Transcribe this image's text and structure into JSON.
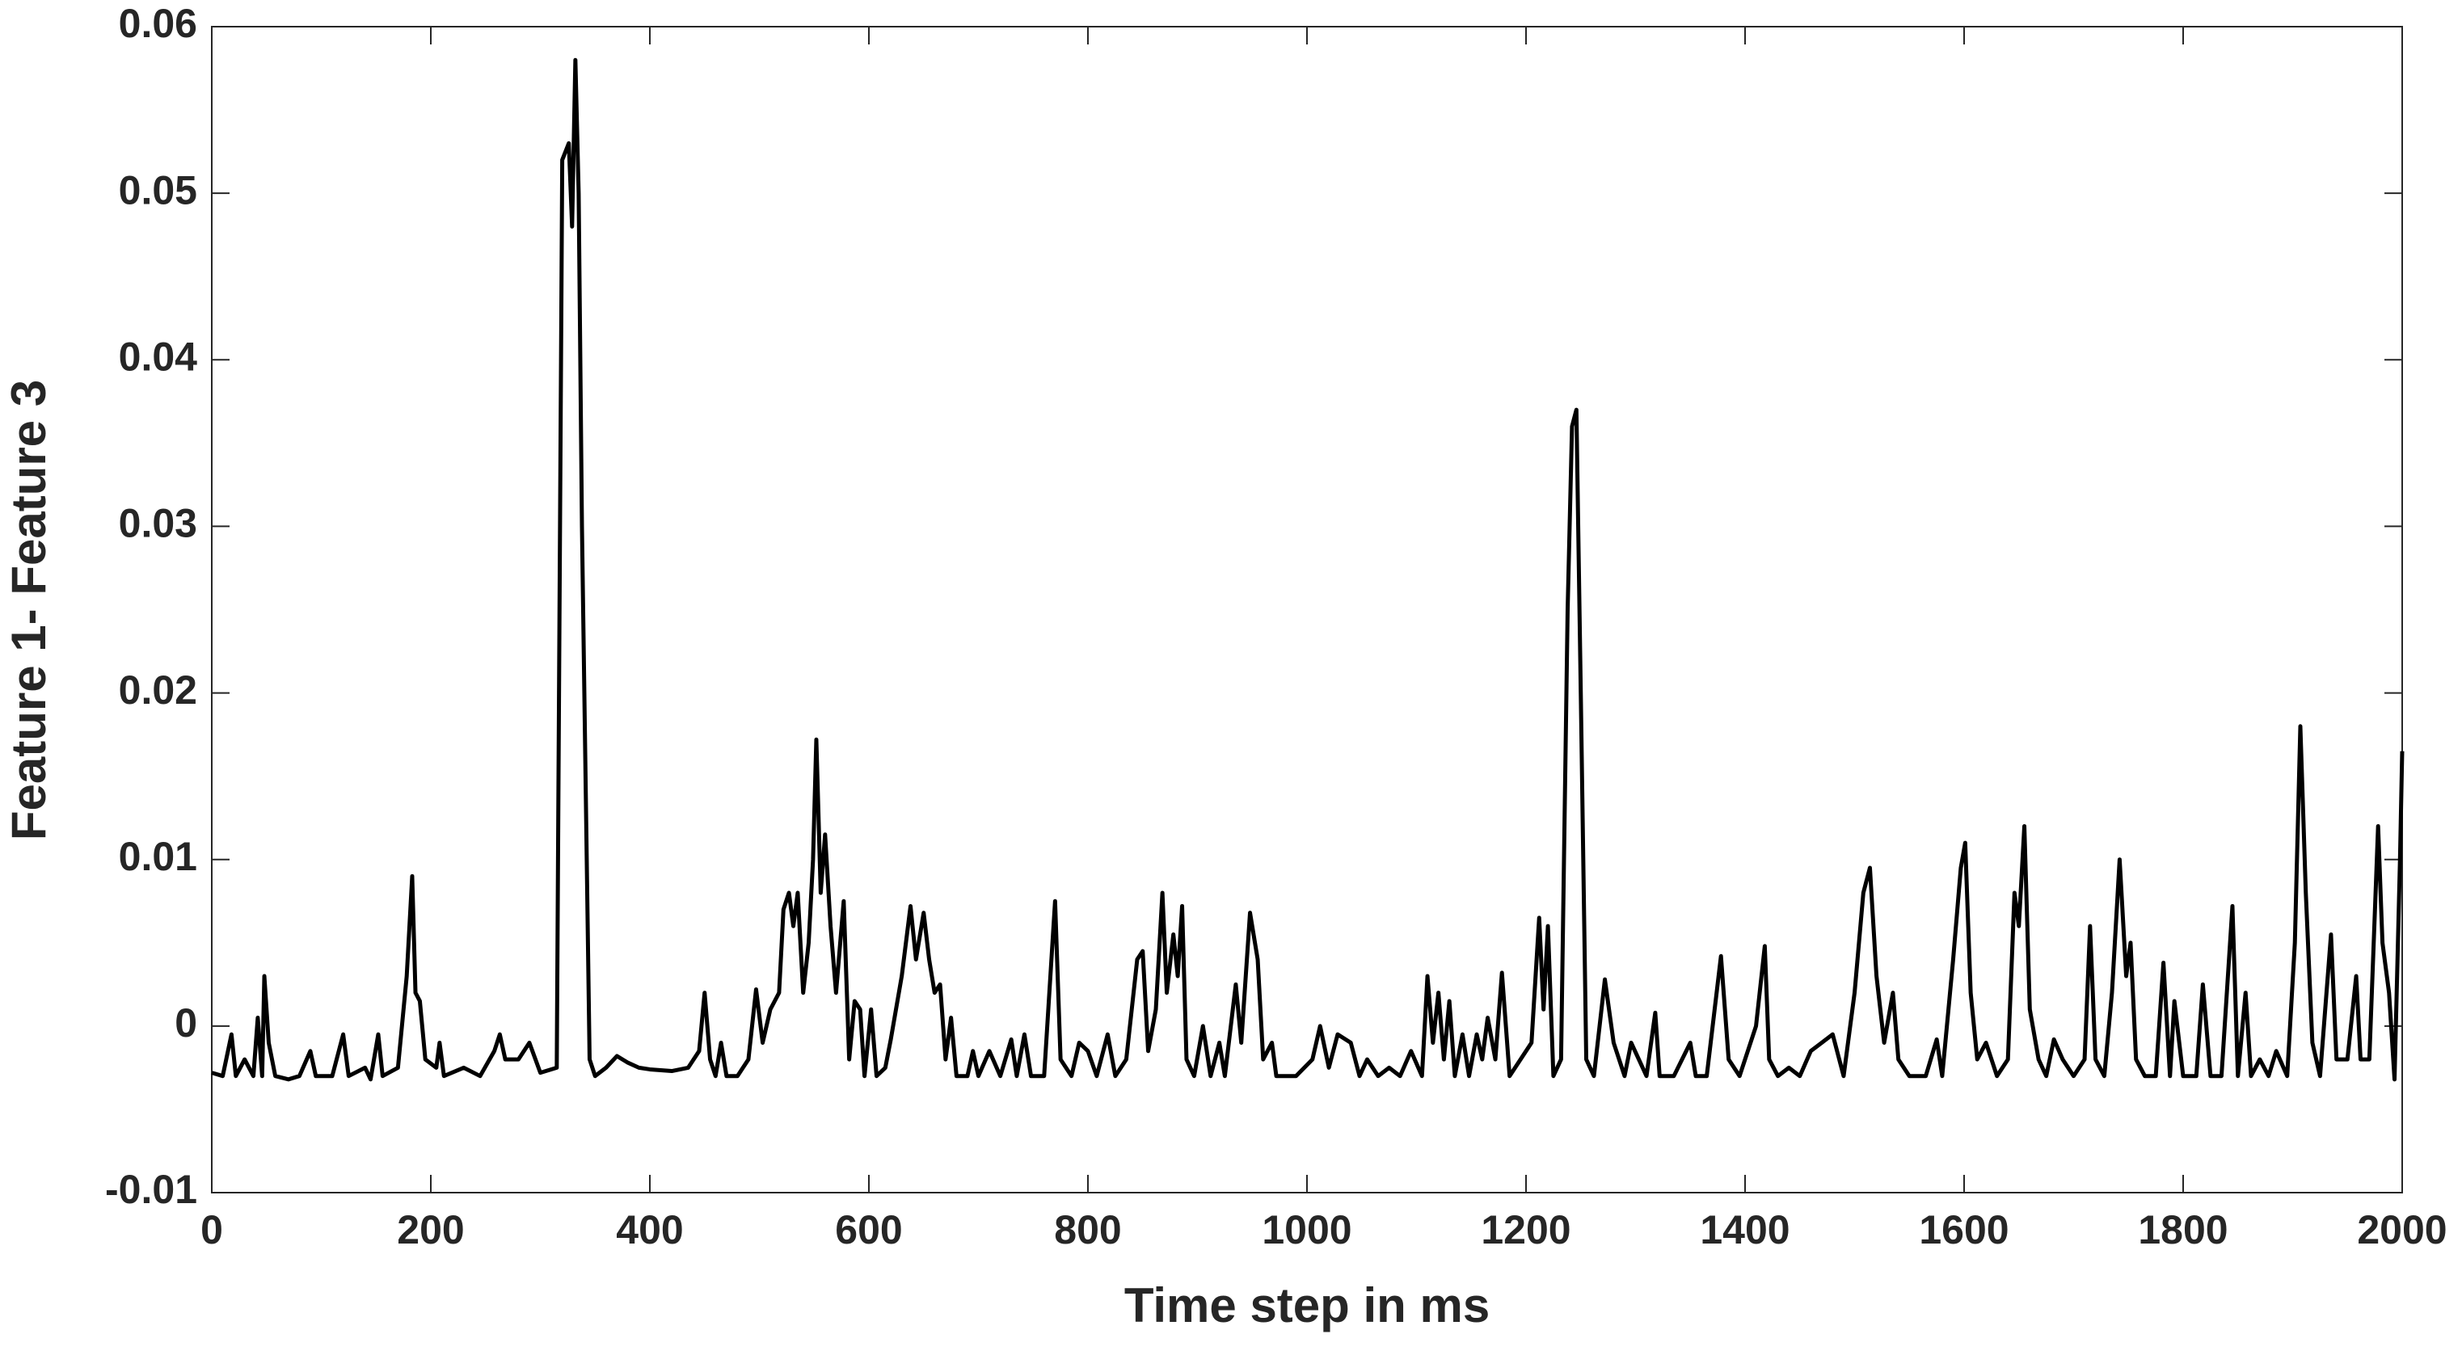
{
  "chart_data": {
    "type": "line",
    "xlabel": "Time step in ms",
    "ylabel": "Feature 1- Feature 3",
    "color": "#000000",
    "xlim": [
      0,
      2000
    ],
    "xticks": [
      0,
      200,
      400,
      600,
      800,
      1000,
      1200,
      1400,
      1600,
      1800,
      2000
    ],
    "ylim": [
      -0.01,
      0.06
    ],
    "yticks": [
      -0.01,
      0,
      0.01,
      0.02,
      0.03,
      0.04,
      0.05,
      0.06
    ],
    "grid": false,
    "x": [
      0,
      10,
      18,
      22,
      30,
      38,
      42,
      46,
      48,
      52,
      58,
      70,
      80,
      90,
      95,
      110,
      120,
      125,
      140,
      145,
      152,
      156,
      170,
      178,
      183,
      186,
      190,
      195,
      205,
      208,
      212,
      230,
      245,
      258,
      263,
      268,
      280,
      290,
      300,
      315,
      320,
      326,
      329,
      332,
      335,
      338,
      345,
      350,
      360,
      370,
      380,
      390,
      400,
      420,
      435,
      445,
      450,
      455,
      460,
      465,
      470,
      480,
      490,
      497,
      503,
      510,
      518,
      522,
      527,
      531,
      535,
      540,
      545,
      549,
      552,
      556,
      560,
      565,
      570,
      577,
      582,
      587,
      592,
      596,
      602,
      607,
      615,
      620,
      630,
      638,
      643,
      650,
      655,
      660,
      665,
      670,
      675,
      680,
      690,
      695,
      700,
      710,
      720,
      730,
      735,
      742,
      748,
      760,
      770,
      775,
      785,
      792,
      800,
      808,
      818,
      825,
      835,
      845,
      850,
      855,
      862,
      868,
      872,
      878,
      882,
      886,
      890,
      897,
      905,
      912,
      920,
      925,
      935,
      940,
      948,
      955,
      960,
      968,
      972,
      990,
      1005,
      1012,
      1020,
      1028,
      1040,
      1048,
      1055,
      1065,
      1075,
      1085,
      1095,
      1105,
      1110,
      1115,
      1120,
      1125,
      1130,
      1135,
      1142,
      1148,
      1155,
      1160,
      1165,
      1172,
      1178,
      1185,
      1195,
      1205,
      1212,
      1216,
      1220,
      1225,
      1232,
      1238,
      1242,
      1246,
      1250,
      1255,
      1262,
      1272,
      1280,
      1290,
      1296,
      1303,
      1310,
      1318,
      1322,
      1335,
      1350,
      1355,
      1365,
      1378,
      1385,
      1395,
      1410,
      1418,
      1422,
      1430,
      1440,
      1450,
      1460,
      1470,
      1480,
      1490,
      1500,
      1508,
      1514,
      1520,
      1527,
      1535,
      1540,
      1550,
      1565,
      1575,
      1580,
      1590,
      1597,
      1601,
      1606,
      1612,
      1620,
      1630,
      1640,
      1646,
      1650,
      1655,
      1660,
      1668,
      1675,
      1682,
      1690,
      1700,
      1710,
      1715,
      1720,
      1728,
      1735,
      1742,
      1748,
      1752,
      1757,
      1765,
      1775,
      1782,
      1788,
      1792,
      1800,
      1812,
      1818,
      1825,
      1835,
      1845,
      1850,
      1857,
      1862,
      1870,
      1878,
      1885,
      1895,
      1902,
      1907,
      1912,
      1918,
      1925,
      1935,
      1940,
      1950,
      1958,
      1962,
      1970,
      1978,
      1982,
      1988,
      1993,
      1998,
      2000
    ],
    "values": [
      -0.0028,
      -0.003,
      -0.0005,
      -0.003,
      -0.002,
      -0.003,
      0.0005,
      -0.003,
      0.003,
      -0.001,
      -0.003,
      -0.0032,
      -0.003,
      -0.0015,
      -0.003,
      -0.003,
      -0.0005,
      -0.003,
      -0.0025,
      -0.0032,
      -0.0005,
      -0.003,
      -0.0025,
      0.003,
      0.009,
      0.002,
      0.0015,
      -0.002,
      -0.0025,
      -0.001,
      -0.003,
      -0.0025,
      -0.003,
      -0.0015,
      -0.0005,
      -0.002,
      -0.002,
      -0.001,
      -0.0028,
      -0.0025,
      0.052,
      0.053,
      0.048,
      0.058,
      0.05,
      0.03,
      -0.002,
      -0.003,
      -0.0025,
      -0.0018,
      -0.0022,
      -0.0025,
      -0.0026,
      -0.0027,
      -0.0025,
      -0.0015,
      0.002,
      -0.002,
      -0.003,
      -0.001,
      -0.003,
      -0.003,
      -0.002,
      0.0022,
      -0.001,
      0.001,
      0.002,
      0.007,
      0.008,
      0.006,
      0.008,
      0.002,
      0.005,
      0.01,
      0.0172,
      0.008,
      0.0115,
      0.006,
      0.002,
      0.0075,
      -0.002,
      0.0015,
      0.001,
      -0.003,
      0.001,
      -0.003,
      -0.0025,
      -0.0008,
      0.003,
      0.0072,
      0.004,
      0.0068,
      0.004,
      0.002,
      0.0025,
      -0.002,
      0.0005,
      -0.003,
      -0.003,
      -0.0015,
      -0.003,
      -0.0015,
      -0.003,
      -0.0008,
      -0.003,
      -0.0005,
      -0.003,
      -0.003,
      0.0075,
      -0.002,
      -0.003,
      -0.001,
      -0.0015,
      -0.003,
      -0.0005,
      -0.003,
      -0.002,
      0.004,
      0.0045,
      -0.0015,
      0.001,
      0.008,
      0.002,
      0.0055,
      0.003,
      0.0072,
      -0.002,
      -0.003,
      0,
      -0.003,
      -0.001,
      -0.003,
      0.0025,
      -0.001,
      0.0068,
      0.004,
      -0.002,
      -0.001,
      -0.003,
      -0.003,
      -0.002,
      0,
      -0.0025,
      -0.0005,
      -0.001,
      -0.003,
      -0.002,
      -0.003,
      -0.0025,
      -0.003,
      -0.0015,
      -0.003,
      0.003,
      -0.001,
      0.002,
      -0.002,
      0.0015,
      -0.003,
      -0.0005,
      -0.003,
      -0.0005,
      -0.002,
      0.0005,
      -0.002,
      0.0032,
      -0.003,
      -0.002,
      -0.001,
      0.0065,
      0.001,
      0.006,
      -0.003,
      -0.002,
      0.025,
      0.036,
      0.037,
      0.02,
      -0.002,
      -0.003,
      0.0028,
      -0.001,
      -0.003,
      -0.001,
      -0.002,
      -0.003,
      0.0008,
      -0.003,
      -0.003,
      -0.001,
      -0.003,
      -0.003,
      0.0042,
      -0.002,
      -0.003,
      0,
      0.0048,
      -0.002,
      -0.003,
      -0.0025,
      -0.003,
      -0.0015,
      -0.001,
      -0.0005,
      -0.003,
      0.002,
      0.008,
      0.0095,
      0.003,
      -0.001,
      0.002,
      -0.002,
      -0.003,
      -0.003,
      -0.0008,
      -0.003,
      0.004,
      0.0095,
      0.011,
      0.002,
      -0.002,
      -0.001,
      -0.003,
      -0.002,
      0.008,
      0.006,
      0.012,
      0.001,
      -0.002,
      -0.003,
      -0.0008,
      -0.002,
      -0.003,
      -0.002,
      0.006,
      -0.002,
      -0.003,
      0.002,
      0.01,
      0.003,
      0.005,
      -0.002,
      -0.003,
      -0.003,
      0.0038,
      -0.003,
      0.0015,
      -0.003,
      -0.003,
      0.0025,
      -0.003,
      -0.003,
      0.0072,
      -0.003,
      0.002,
      -0.003,
      -0.002,
      -0.003,
      -0.0015,
      -0.003,
      0.005,
      0.018,
      0.008,
      -0.001,
      -0.003,
      0.0055,
      -0.002,
      -0.002,
      0.003,
      -0.002,
      -0.002,
      0.012,
      0.005,
      0.002,
      -0.0032,
      0.01,
      0.0165
    ]
  }
}
